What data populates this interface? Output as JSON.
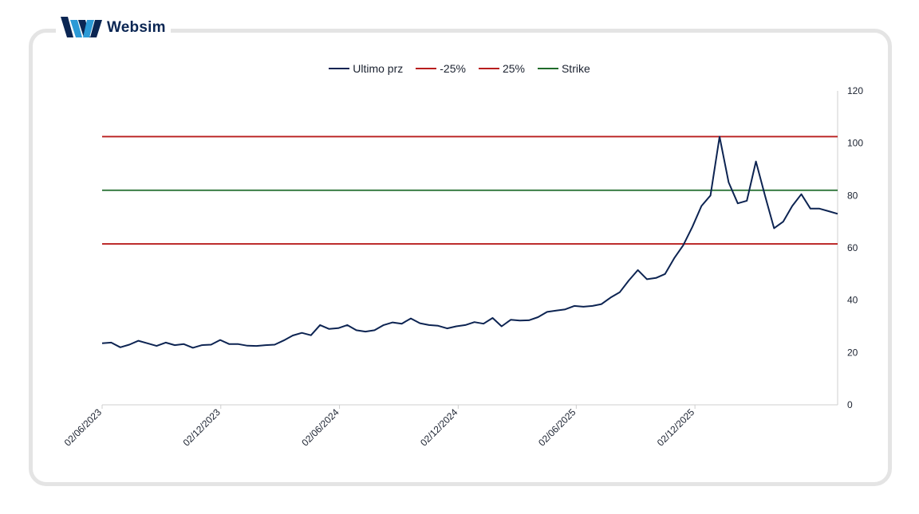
{
  "logo": {
    "text": "Websim",
    "icon": "websim-w-logo-icon"
  },
  "colors": {
    "price": "#0d2452",
    "bands": "#b81d1d",
    "strike": "#1f6b2a",
    "axis": "#cfcfcf",
    "text": "#1b2230",
    "card_border": "#e4e4e4"
  },
  "legend": [
    {
      "label": "Ultimo prz",
      "color": "#0d2452"
    },
    {
      "label": "-25%",
      "color": "#b81d1d"
    },
    {
      "label": "25%",
      "color": "#b81d1d"
    },
    {
      "label": "Strike",
      "color": "#1f6b2a"
    }
  ],
  "chart_data": {
    "type": "line",
    "title": "",
    "xlabel": "",
    "ylabel": "",
    "ylim": [
      0,
      120
    ],
    "y_axis_position": "right",
    "y_ticks": [
      0,
      20,
      40,
      60,
      80,
      100,
      120
    ],
    "x_range": [
      "2023-06-02",
      "2026-07-10"
    ],
    "x_ticks": [
      {
        "date": "2023-06-02",
        "label": "02/06/2023"
      },
      {
        "date": "2023-12-02",
        "label": "02/12/2023"
      },
      {
        "date": "2024-06-02",
        "label": "02/06/2024"
      },
      {
        "date": "2024-12-02",
        "label": "02/12/2024"
      },
      {
        "date": "2025-06-02",
        "label": "02/06/2025"
      },
      {
        "date": "2025-12-02",
        "label": "02/12/2025"
      }
    ],
    "grid": false,
    "legend_position": "top-center",
    "reference_lines": [
      {
        "name": "-25%",
        "value": 61.5
      },
      {
        "name": "25%",
        "value": 102.5
      },
      {
        "name": "Strike",
        "value": 82
      }
    ],
    "series": [
      {
        "name": "Ultimo prz",
        "x": [
          "2023-06-02",
          "2023-06-16",
          "2023-06-30",
          "2023-07-14",
          "2023-07-28",
          "2023-08-11",
          "2023-08-25",
          "2023-09-08",
          "2023-09-22",
          "2023-10-06",
          "2023-10-20",
          "2023-11-03",
          "2023-11-17",
          "2023-12-01",
          "2023-12-15",
          "2023-12-29",
          "2024-01-12",
          "2024-01-26",
          "2024-02-09",
          "2024-02-23",
          "2024-03-08",
          "2024-03-22",
          "2024-04-05",
          "2024-04-19",
          "2024-05-03",
          "2024-05-17",
          "2024-05-31",
          "2024-06-14",
          "2024-06-28",
          "2024-07-12",
          "2024-07-26",
          "2024-08-09",
          "2024-08-23",
          "2024-09-06",
          "2024-09-20",
          "2024-10-04",
          "2024-10-18",
          "2024-11-01",
          "2024-11-15",
          "2024-11-29",
          "2024-12-13",
          "2024-12-27",
          "2025-01-10",
          "2025-01-24",
          "2025-02-07",
          "2025-02-21",
          "2025-03-07",
          "2025-03-21",
          "2025-04-04",
          "2025-04-18",
          "2025-05-02",
          "2025-05-16",
          "2025-05-30",
          "2025-06-13",
          "2025-06-27",
          "2025-07-11",
          "2025-07-25",
          "2025-08-08",
          "2025-08-22",
          "2025-09-05",
          "2025-09-19",
          "2025-10-03",
          "2025-10-17",
          "2025-10-31",
          "2025-11-14",
          "2025-11-28",
          "2025-12-12",
          "2025-12-26",
          "2026-01-09",
          "2026-01-23",
          "2026-02-06",
          "2026-02-20",
          "2026-03-06",
          "2026-03-20",
          "2026-04-03",
          "2026-04-17",
          "2026-05-01",
          "2026-05-15",
          "2026-05-29",
          "2026-06-12",
          "2026-06-26",
          "2026-07-10"
        ],
        "y": [
          23.5,
          23.8,
          22.0,
          23.0,
          24.5,
          23.5,
          22.5,
          23.8,
          22.8,
          23.2,
          21.8,
          22.8,
          23.0,
          24.8,
          23.2,
          23.2,
          22.6,
          22.5,
          22.8,
          23.0,
          24.6,
          26.5,
          27.5,
          26.6,
          30.5,
          29.0,
          29.3,
          30.5,
          28.5,
          28.0,
          28.5,
          30.5,
          31.5,
          31.0,
          33.0,
          31.2,
          30.5,
          30.2,
          29.2,
          30.0,
          30.5,
          31.6,
          31.0,
          33.2,
          30.0,
          32.5,
          32.2,
          32.3,
          33.5,
          35.5,
          36.0,
          36.5,
          37.8,
          37.5,
          37.8,
          38.5,
          41.0,
          43.0,
          47.5,
          51.5,
          48.0,
          48.5,
          50.0,
          56.0,
          61.0,
          68.0,
          76.0,
          80.0,
          102.5,
          85.0,
          77.0,
          78.0,
          93.0,
          80.0,
          67.5,
          70.0,
          76.0,
          80.5,
          75.0,
          75.0,
          74.0,
          73.0
        ]
      }
    ]
  }
}
